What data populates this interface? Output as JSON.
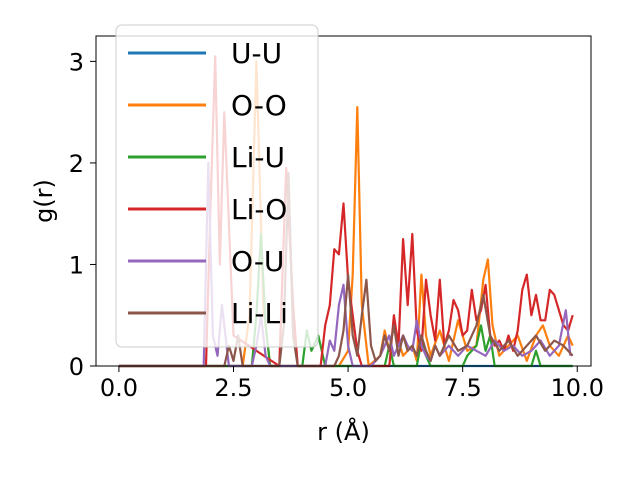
{
  "chart_data": {
    "type": "line",
    "title": "",
    "xlabel": "r (Å)",
    "ylabel": "g(r)",
    "xlim": [
      -0.5,
      10.3
    ],
    "ylim": [
      0,
      3.25
    ],
    "xticks": [
      0.0,
      2.5,
      5.0,
      7.5,
      10.0
    ],
    "xtick_labels": [
      "0.0",
      "2.5",
      "5.0",
      "7.5",
      "10.0"
    ],
    "yticks": [
      0,
      1,
      2,
      3
    ],
    "ytick_labels": [
      "0",
      "1",
      "2",
      "3"
    ],
    "grid": false,
    "legend_position": "upper-left",
    "series": [
      {
        "name": "U-U",
        "color": "#1f77b4",
        "x": [
          0.0,
          9.9
        ],
        "y": [
          0,
          0
        ]
      },
      {
        "name": "O-O",
        "color": "#ff7f0e",
        "x": [
          0.0,
          2.7,
          2.85,
          3.0,
          3.15,
          3.3,
          4.8,
          5.0,
          5.1,
          5.2,
          5.3,
          5.45,
          5.7,
          5.8,
          5.9,
          6.0,
          6.2,
          6.4,
          6.5,
          6.6,
          6.7,
          6.8,
          7.0,
          7.2,
          7.4,
          7.6,
          7.8,
          7.95,
          8.05,
          8.15,
          8.3,
          8.5,
          8.7,
          8.9,
          9.1,
          9.25,
          9.4,
          9.6,
          9.8,
          9.9
        ],
        "y": [
          0,
          0,
          0.5,
          3.0,
          0.6,
          0,
          0,
          0.15,
          0.9,
          2.55,
          0.6,
          0,
          0.1,
          0.35,
          0.15,
          0.4,
          0.1,
          0.2,
          0.05,
          0.9,
          0.3,
          0.1,
          0.35,
          0.05,
          0.45,
          0.15,
          0.2,
          0.85,
          1.05,
          0.4,
          0.1,
          0.2,
          0.3,
          0.05,
          0.3,
          0.4,
          0.2,
          0.1,
          0.3,
          0.2
        ]
      },
      {
        "name": "Li-U",
        "color": "#2ca02c",
        "x": [
          0.0,
          2.9,
          3.0,
          3.1,
          3.2,
          3.3,
          4.0,
          4.1,
          4.2,
          4.35,
          4.5,
          5.8,
          5.9,
          6.0,
          6.5,
          6.6,
          6.7,
          6.8,
          7.5,
          7.6,
          7.8,
          7.9,
          8.0,
          8.1,
          8.2,
          9.0,
          9.1,
          9.2,
          9.9
        ],
        "y": [
          0,
          0,
          0.5,
          1.3,
          0.4,
          0,
          0,
          0.35,
          0.15,
          0.3,
          0,
          0,
          0.2,
          0,
          0,
          0.25,
          0.1,
          0,
          0,
          0.1,
          0.2,
          0.4,
          0.15,
          0.3,
          0,
          0,
          0.15,
          0,
          0
        ]
      },
      {
        "name": "Li-O",
        "color": "#d62728",
        "x": [
          0.0,
          1.9,
          2.0,
          2.1,
          2.2,
          2.3,
          2.5,
          3.5,
          3.65,
          3.8,
          3.9,
          4.4,
          4.5,
          4.6,
          4.7,
          4.8,
          4.9,
          5.0,
          5.1,
          5.2,
          5.3,
          5.9,
          6.0,
          6.1,
          6.2,
          6.3,
          6.4,
          6.5,
          6.6,
          6.7,
          6.8,
          6.9,
          7.0,
          7.1,
          7.2,
          7.3,
          7.4,
          7.5,
          7.6,
          7.7,
          7.8,
          7.9,
          8.0,
          8.1,
          8.2,
          8.3,
          8.4,
          8.5,
          8.6,
          8.7,
          8.8,
          8.9,
          9.0,
          9.1,
          9.2,
          9.3,
          9.4,
          9.5,
          9.6,
          9.7,
          9.8,
          9.9
        ],
        "y": [
          0,
          0,
          1.6,
          3.05,
          1.0,
          2.5,
          0.3,
          0,
          1.95,
          0.6,
          0,
          0,
          0.4,
          0.6,
          1.15,
          1.1,
          1.6,
          0.85,
          0.5,
          0.15,
          0,
          0,
          0.5,
          0.2,
          1.25,
          0.6,
          1.3,
          0.35,
          0.15,
          0.85,
          0.5,
          0.25,
          0.85,
          0.2,
          0.35,
          0.65,
          0.55,
          0.3,
          0.35,
          0.75,
          0.45,
          0.55,
          0.8,
          0.3,
          0.2,
          0.25,
          0.15,
          0.3,
          0.15,
          0.35,
          0.75,
          0.9,
          0.5,
          0.7,
          0.45,
          0.45,
          0.75,
          0.7,
          0.55,
          0.4,
          0.35,
          0.5
        ]
      },
      {
        "name": "O-U",
        "color": "#9467bd",
        "x": [
          0.0,
          1.85,
          1.95,
          2.05,
          2.15,
          2.25,
          2.4,
          2.9,
          3.0,
          3.1,
          3.2,
          3.3,
          4.5,
          4.6,
          4.7,
          4.8,
          4.9,
          5.0,
          5.1,
          5.5,
          5.6,
          5.7,
          5.8,
          5.9,
          6.0,
          6.1,
          6.2,
          6.3,
          6.4,
          6.5,
          6.6,
          6.7,
          6.8,
          6.9,
          7.0,
          7.2,
          7.4,
          7.6,
          7.8,
          8.0,
          8.2,
          8.4,
          8.6,
          8.8,
          9.0,
          9.2,
          9.4,
          9.6,
          9.75,
          9.85
        ],
        "y": [
          0,
          0,
          2.0,
          0.3,
          0.1,
          0.6,
          0,
          0,
          0.2,
          0.5,
          0.1,
          0,
          0,
          0.25,
          0.15,
          0.6,
          0.8,
          0.2,
          0,
          0,
          0.05,
          0.1,
          0.2,
          0.3,
          0.1,
          0.2,
          0.3,
          0.2,
          0.15,
          0.45,
          0.2,
          0.1,
          0.05,
          0.2,
          0.1,
          0.2,
          0.1,
          0.2,
          0.15,
          0.1,
          0.25,
          0.15,
          0.2,
          0.1,
          0.15,
          0.25,
          0.1,
          0.2,
          0.55,
          0.1
        ]
      },
      {
        "name": "Li-Li",
        "color": "#8c564b",
        "x": [
          0.0,
          2.3,
          2.4,
          2.5,
          2.6,
          2.7,
          3.5,
          3.6,
          3.7,
          3.8,
          3.9,
          4.7,
          4.8,
          4.9,
          5.0,
          5.1,
          5.2,
          5.3,
          5.4,
          5.5,
          5.6,
          5.7,
          5.8,
          5.9,
          6.0,
          6.1,
          6.2,
          6.3,
          6.4,
          6.5,
          6.6,
          6.7,
          6.8,
          6.9,
          7.0,
          7.2,
          7.4,
          7.6,
          7.8,
          7.95,
          8.1,
          8.3,
          8.5,
          8.7,
          8.9,
          9.1,
          9.3,
          9.5,
          9.7,
          9.9
        ],
        "y": [
          0,
          0,
          0.2,
          0.05,
          0.3,
          0,
          0,
          0.4,
          1.9,
          0.3,
          0,
          0,
          0.1,
          0.35,
          0.9,
          0.3,
          0.1,
          0.5,
          0.85,
          0.2,
          0.05,
          0.1,
          0.3,
          0.15,
          0.4,
          0.1,
          0.3,
          0.15,
          0.2,
          0.1,
          0.3,
          0.15,
          0.05,
          0.2,
          0.1,
          0.3,
          0.15,
          0.2,
          0.4,
          0.7,
          0.3,
          0.15,
          0.25,
          0.1,
          0.2,
          0.3,
          0.15,
          0.25,
          0.2,
          0.1
        ]
      }
    ]
  }
}
